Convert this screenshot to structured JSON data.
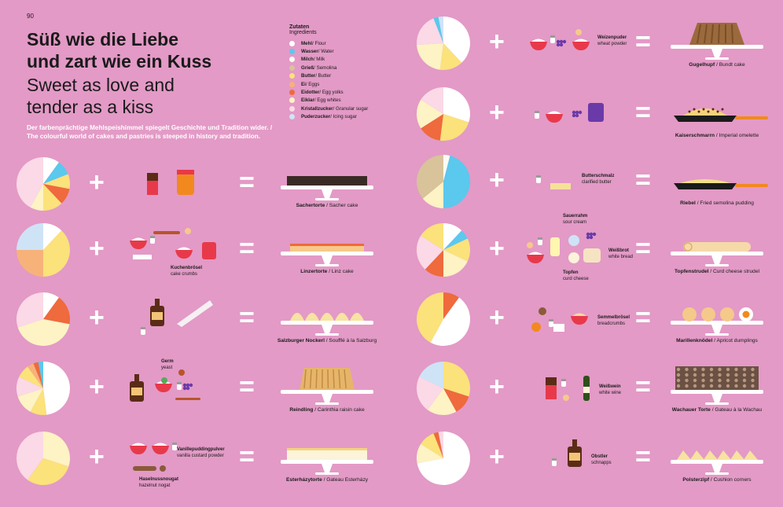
{
  "page_number": "90",
  "title_de": [
    "Süß wie die Liebe",
    "und zart wie ein Kuss"
  ],
  "title_en": [
    "Sweet as love and",
    "tender as a kiss"
  ],
  "intro": [
    "Der farbenprächtige Mehlspeishimmel spiegelt Geschichte und Tradition wider. /",
    "The colourful world of cakes and pastries is steeped in history and tradition."
  ],
  "legend": {
    "heading_de": "Zutaten",
    "heading_en": "Ingredients",
    "items": [
      {
        "de": "Mehl",
        "en": "Flour",
        "color": "#ffffff"
      },
      {
        "de": "Wasser",
        "en": "Water",
        "color": "#5bc8ee"
      },
      {
        "de": "Milch",
        "en": "Milk",
        "color": "#fbfbf3"
      },
      {
        "de": "Grieß",
        "en": "Semolina",
        "color": "#d8c39a"
      },
      {
        "de": "Butter",
        "en": "Butter",
        "color": "#fbe27a"
      },
      {
        "de": "Ei",
        "en": "Eggs",
        "color": "#f7b27a"
      },
      {
        "de": "Eidotter",
        "en": "Egg yolks",
        "color": "#ef6a3c"
      },
      {
        "de": "Eiklar",
        "en": "Egg whites",
        "color": "#fdf3c4"
      },
      {
        "de": "Kristallzucker",
        "en": "Granular sugar",
        "color": "#fbd9e6"
      },
      {
        "de": "Puderzucker",
        "en": "Icing sugar",
        "color": "#cfe3f7"
      }
    ]
  },
  "recipes": [
    {
      "id": "sachertorte",
      "de": "Sachertorte",
      "en": "Sacher cake",
      "pie": [
        [
          "#ffffff",
          0.1
        ],
        [
          "#5bc8ee",
          0.09
        ],
        [
          "#fbe27a",
          0.09
        ],
        [
          "#ef6a3c",
          0.1
        ],
        [
          "#fbe27a",
          0.12
        ],
        [
          "#fdf3c4",
          0.08
        ],
        [
          "#fbd9e6",
          0.42
        ]
      ],
      "extras": []
    },
    {
      "id": "linzertorte",
      "de": "Linzertorte",
      "en": "Linz cake",
      "pie": [
        [
          "#ffffff",
          0.12
        ],
        [
          "#fbe27a",
          0.38
        ],
        [
          "#f7b27a",
          0.25
        ],
        [
          "#cfe3f7",
          0.25
        ]
      ],
      "extras": [
        {
          "de": "Kuchenbrösel",
          "en": "cake crumbs"
        }
      ]
    },
    {
      "id": "nockerl",
      "de": "Salzburger Nockerl",
      "en": "Soufflé à la Salzburg",
      "pie": [
        [
          "#ffffff",
          0.1
        ],
        [
          "#ef6a3c",
          0.18
        ],
        [
          "#fdf3c4",
          0.42
        ],
        [
          "#fbd9e6",
          0.3
        ]
      ],
      "extras": []
    },
    {
      "id": "reindling",
      "de": "Reindling",
      "en": "Carinthia raisin cake",
      "pie": [
        [
          "#ffffff",
          0.48
        ],
        [
          "#fbe27a",
          0.1
        ],
        [
          "#fdf3c4",
          0.12
        ],
        [
          "#fbd9e6",
          0.12
        ],
        [
          "#fbe27a",
          0.08
        ],
        [
          "#f7b27a",
          0.04
        ],
        [
          "#ef6a3c",
          0.03
        ],
        [
          "#5bc8ee",
          0.03
        ]
      ],
      "extras": [
        {
          "de": "Germ",
          "en": "yeast"
        }
      ]
    },
    {
      "id": "esterhazy",
      "de": "Esterházytorte",
      "en": "Gateau Esterházy",
      "pie": [
        [
          "#fdf3c4",
          0.3
        ],
        [
          "#fbe27a",
          0.3
        ],
        [
          "#fbd9e6",
          0.4
        ]
      ],
      "extras": [
        {
          "de": "Vanillepuddingpulver",
          "en": "vanilla custard powder"
        },
        {
          "de": "Haselnussnougat",
          "en": "hazelnut nogat"
        }
      ]
    },
    {
      "id": "gugelhupf",
      "de": "Gugelhupf",
      "en": "Bundt cake",
      "pie": [
        [
          "#ffffff",
          0.38
        ],
        [
          "#fbe27a",
          0.14
        ],
        [
          "#fdf3c4",
          0.22
        ],
        [
          "#fbd9e6",
          0.2
        ],
        [
          "#5bc8ee",
          0.03
        ],
        [
          "#cfe3f7",
          0.03
        ]
      ],
      "extras": [
        {
          "de": "Weizenpuder",
          "en": "wheat powder"
        }
      ]
    },
    {
      "id": "kaiserschmarrn",
      "de": "Kaiserschmarrn",
      "en": "Imperial omelette",
      "pie": [
        [
          "#ffffff",
          0.3
        ],
        [
          "#fbe27a",
          0.22
        ],
        [
          "#ef6a3c",
          0.14
        ],
        [
          "#fdf3c4",
          0.18
        ],
        [
          "#fbd9e6",
          0.16
        ]
      ],
      "extras": []
    },
    {
      "id": "riebel",
      "de": "Riebel",
      "en": "Fried semolina pudding",
      "pie": [
        [
          "#fbfbf3",
          0.04
        ],
        [
          "#5bc8ee",
          0.46
        ],
        [
          "#fdf3c4",
          0.14
        ],
        [
          "#d8c39a",
          0.36
        ]
      ],
      "extras": [
        {
          "de": "Butterschmalz",
          "en": "clarified butter"
        }
      ]
    },
    {
      "id": "topfenstrudel",
      "de": "Topfenstrudel",
      "en": "Curd cheese strudel",
      "pie": [
        [
          "#ffffff",
          0.12
        ],
        [
          "#5bc8ee",
          0.06
        ],
        [
          "#fbe27a",
          0.14
        ],
        [
          "#fdf3c4",
          0.18
        ],
        [
          "#ef6a3c",
          0.12
        ],
        [
          "#fbd9e6",
          0.22
        ],
        [
          "#fbe27a",
          0.16
        ]
      ],
      "extras": [
        {
          "de": "Sauerrahm",
          "en": "sour cream"
        },
        {
          "de": "Weißbrot",
          "en": "white bread"
        },
        {
          "de": "Topfen",
          "en": "curd cheese"
        }
      ]
    },
    {
      "id": "marillenknoedel",
      "de": "Marillenknödel",
      "en": "Apricot dumplings",
      "pie": [
        [
          "#ef6a3c",
          0.1
        ],
        [
          "#ffffff",
          0.48
        ],
        [
          "#fbe27a",
          0.42
        ]
      ],
      "extras": [
        {
          "de": "Semmelbrösel",
          "en": "breadcrumbs"
        }
      ]
    },
    {
      "id": "wachauer",
      "de": "Wachauer Torte",
      "en": "Gateau à la Wachau",
      "pie": [
        [
          "#fbe27a",
          0.3
        ],
        [
          "#ef6a3c",
          0.12
        ],
        [
          "#fdf3c4",
          0.18
        ],
        [
          "#fbd9e6",
          0.22
        ],
        [
          "#cfe3f7",
          0.18
        ]
      ],
      "extras": [
        {
          "de": "Weißwein",
          "en": "white wine"
        }
      ]
    },
    {
      "id": "polsterzipf",
      "de": "Polsterzipf",
      "en": "Cushion corners",
      "pie": [
        [
          "#ffffff",
          0.72
        ],
        [
          "#fdf3c4",
          0.12
        ],
        [
          "#fbe27a",
          0.1
        ],
        [
          "#ef6a3c",
          0.03
        ],
        [
          "#fbd9e6",
          0.03
        ]
      ],
      "extras": [
        {
          "de": "Obstler",
          "en": "schnapps"
        }
      ]
    }
  ]
}
